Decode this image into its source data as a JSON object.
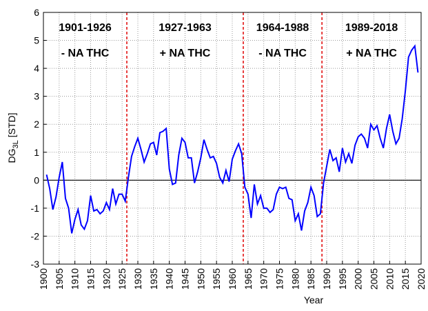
{
  "chart_data": {
    "type": "line",
    "xlabel": "Year",
    "ylabel": {
      "main": "DG",
      "sub": "3L",
      "unit": "[STD]"
    },
    "x": [
      1901,
      1902,
      1903,
      1904,
      1905,
      1906,
      1907,
      1908,
      1909,
      1910,
      1911,
      1912,
      1913,
      1914,
      1915,
      1916,
      1917,
      1918,
      1919,
      1920,
      1921,
      1922,
      1923,
      1924,
      1925,
      1926,
      1927,
      1928,
      1929,
      1930,
      1931,
      1932,
      1933,
      1934,
      1935,
      1936,
      1937,
      1938,
      1939,
      1940,
      1941,
      1942,
      1943,
      1944,
      1945,
      1946,
      1947,
      1948,
      1949,
      1950,
      1951,
      1952,
      1953,
      1954,
      1955,
      1956,
      1957,
      1958,
      1959,
      1960,
      1961,
      1962,
      1963,
      1964,
      1965,
      1966,
      1967,
      1968,
      1969,
      1970,
      1971,
      1972,
      1973,
      1974,
      1975,
      1976,
      1977,
      1978,
      1979,
      1980,
      1981,
      1982,
      1983,
      1984,
      1985,
      1986,
      1987,
      1988,
      1989,
      1990,
      1991,
      1992,
      1993,
      1994,
      1995,
      1996,
      1997,
      1998,
      1999,
      2000,
      2001,
      2002,
      2003,
      2004,
      2005,
      2006,
      2007,
      2008,
      2009,
      2010,
      2011,
      2012,
      2013,
      2014,
      2015,
      2016,
      2017,
      2018,
      2019
    ],
    "series": [
      {
        "color": "#0000ff",
        "values": [
          0.2,
          -0.3,
          -1.05,
          -0.6,
          0.1,
          0.65,
          -0.65,
          -1.0,
          -1.9,
          -1.4,
          -1.05,
          -1.6,
          -1.75,
          -1.45,
          -0.55,
          -1.1,
          -1.05,
          -1.2,
          -1.1,
          -0.8,
          -1.05,
          -0.3,
          -0.85,
          -0.5,
          -0.5,
          -0.75,
          0.1,
          0.85,
          1.2,
          1.5,
          1.1,
          0.65,
          0.95,
          1.3,
          1.35,
          0.9,
          1.7,
          1.75,
          1.85,
          0.4,
          -0.15,
          -0.1,
          0.9,
          1.5,
          1.35,
          0.8,
          0.8,
          -0.1,
          0.3,
          0.8,
          1.45,
          1.1,
          0.8,
          0.85,
          0.6,
          0.1,
          -0.1,
          0.35,
          -0.05,
          0.75,
          1.05,
          1.3,
          0.95,
          -0.25,
          -0.5,
          -1.35,
          -0.15,
          -0.85,
          -0.55,
          -1.0,
          -1.0,
          -1.15,
          -1.05,
          -0.5,
          -0.25,
          -0.3,
          -0.25,
          -0.65,
          -0.7,
          -1.45,
          -1.2,
          -1.8,
          -1.1,
          -0.8,
          -0.25,
          -0.55,
          -1.3,
          -1.2,
          -0.1,
          0.5,
          1.1,
          0.7,
          0.8,
          0.3,
          1.15,
          0.65,
          0.95,
          0.6,
          1.25,
          1.55,
          1.65,
          1.5,
          1.15,
          2.0,
          1.8,
          1.95,
          1.5,
          1.15,
          1.85,
          2.35,
          1.75,
          1.3,
          1.5,
          2.2,
          3.2,
          4.4,
          4.65,
          4.8,
          3.85
        ]
      }
    ],
    "xlim": [
      1900,
      2020
    ],
    "xticks": [
      1900,
      1905,
      1910,
      1915,
      1920,
      1925,
      1930,
      1935,
      1940,
      1945,
      1950,
      1955,
      1960,
      1965,
      1970,
      1975,
      1980,
      1985,
      1990,
      1995,
      2000,
      2005,
      2010,
      2015,
      2020
    ],
    "ylim": [
      -3,
      6
    ],
    "yticks": [
      -3,
      -2,
      -1,
      0,
      1,
      2,
      3,
      4,
      5,
      6
    ],
    "grid": true,
    "zero_line": 0,
    "dividers": {
      "color": "#e00000",
      "values": [
        1926.5,
        1963.5,
        1988.5
      ]
    },
    "annotations": [
      {
        "period": "1901-1926",
        "phase": "- NA THC"
      },
      {
        "period": "1927-1963",
        "phase": "+ NA THC"
      },
      {
        "period": "1964-1988",
        "phase": "- NA THC"
      },
      {
        "period": "1989-2018",
        "phase": "+ NA THC"
      }
    ]
  }
}
